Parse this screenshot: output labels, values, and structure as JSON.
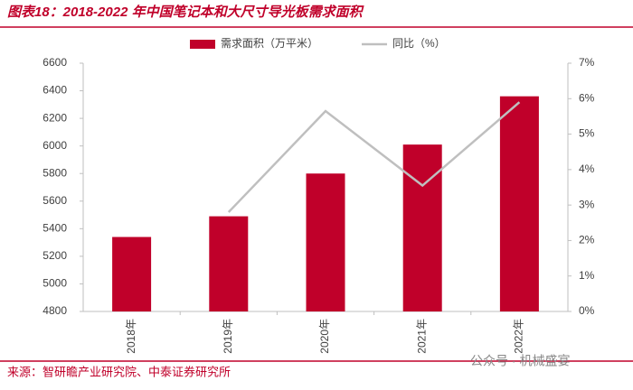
{
  "chart_data": {
    "type": "bar-line",
    "title": "图表18：2018-2022 年中国笔记本和大尺寸导光板需求面积",
    "source": "来源：智研瞻产业研究院、中泰证券研究所",
    "watermark": "公众号 · 机械盛宴",
    "categories": [
      "2018年",
      "2019年",
      "2020年",
      "2021年",
      "2022年"
    ],
    "series": [
      {
        "name": "需求面积（万平米）",
        "color": "#c0002a",
        "type": "bar",
        "values": [
          5340,
          5490,
          5800,
          6010,
          6360
        ]
      },
      {
        "name": "同比（%）",
        "color": "#bfbfbf",
        "type": "line",
        "axis": "y2",
        "values": [
          null,
          2.8,
          5.65,
          3.55,
          5.9
        ]
      }
    ],
    "ylim": [
      4800,
      6600
    ],
    "yticks": [
      4800,
      5000,
      5200,
      5400,
      5600,
      5800,
      6000,
      6200,
      6400,
      6600
    ],
    "y2lim": [
      0,
      7
    ],
    "y2ticks": [
      {
        "value": 0,
        "label": "0%"
      },
      {
        "value": 1,
        "label": "1%"
      },
      {
        "value": 2,
        "label": "2%"
      },
      {
        "value": 3,
        "label": "3%"
      },
      {
        "value": 4,
        "label": "4%"
      },
      {
        "value": 5,
        "label": "5%"
      },
      {
        "value": 6,
        "label": "6%"
      },
      {
        "value": 7,
        "label": "7%"
      }
    ],
    "legend": "top"
  }
}
